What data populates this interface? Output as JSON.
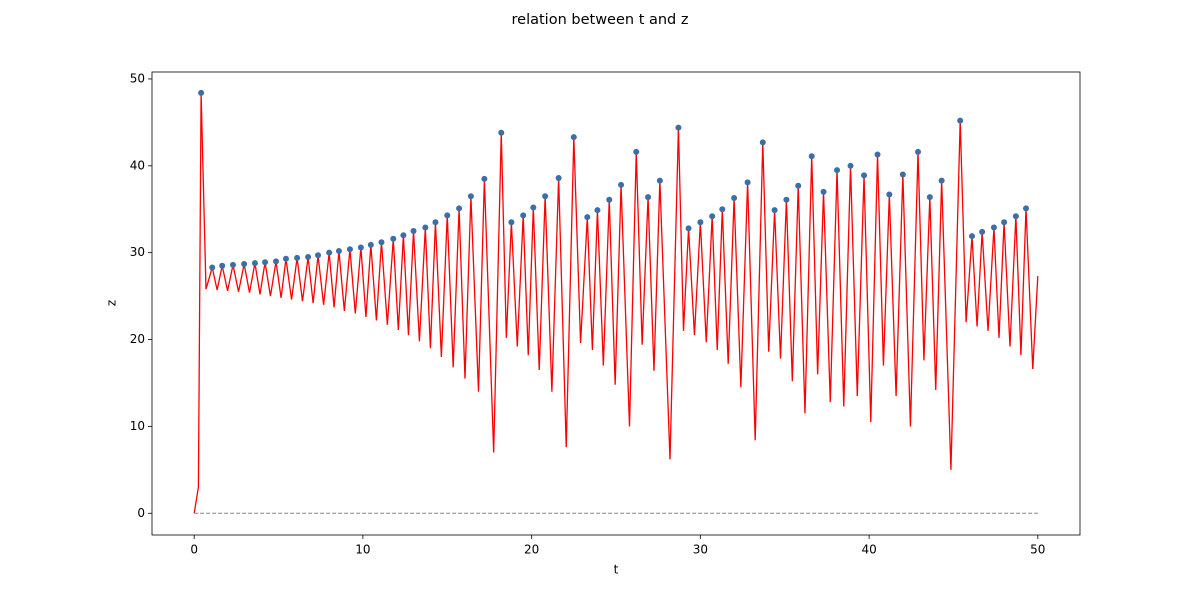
{
  "chart_data": {
    "type": "line",
    "title": "relation between t and z",
    "xlabel": "t",
    "ylabel": "z",
    "xlim": [
      -2.5,
      52.5
    ],
    "ylim": [
      -2.5,
      50.8
    ],
    "xticks": [
      0,
      10,
      20,
      30,
      40,
      50
    ],
    "yticks": [
      0,
      10,
      20,
      30,
      40,
      50
    ],
    "series": [
      {
        "type": "line",
        "color": "#ff0000",
        "style": "solid",
        "x": [
          0,
          0.25,
          0.41,
          0.7,
          1.07,
          1.36,
          1.66,
          1.98,
          2.3,
          2.63,
          2.96,
          3.28,
          3.6,
          3.9,
          4.2,
          4.52,
          4.85,
          5.15,
          5.44,
          5.77,
          6.1,
          6.42,
          6.75,
          7.05,
          7.34,
          7.67,
          8.0,
          8.29,
          8.58,
          8.9,
          9.23,
          9.55,
          9.88,
          10.18,
          10.47,
          10.8,
          11.1,
          11.45,
          11.8,
          12.1,
          12.4,
          12.7,
          13.0,
          13.35,
          13.7,
          14.0,
          14.3,
          14.65,
          15.0,
          15.35,
          15.7,
          16.05,
          16.4,
          16.85,
          17.2,
          17.75,
          18.2,
          18.5,
          18.8,
          19.15,
          19.5,
          19.8,
          20.1,
          20.45,
          20.8,
          21.2,
          21.6,
          22.05,
          22.5,
          22.9,
          23.3,
          23.6,
          23.9,
          24.25,
          24.6,
          24.95,
          25.3,
          25.8,
          26.2,
          26.55,
          26.9,
          27.25,
          27.6,
          28.2,
          28.7,
          29.0,
          29.3,
          29.65,
          30.0,
          30.35,
          30.7,
          31.0,
          31.3,
          31.65,
          32.0,
          32.4,
          32.8,
          33.25,
          33.7,
          34.05,
          34.4,
          34.75,
          35.1,
          35.45,
          35.8,
          36.2,
          36.6,
          36.95,
          37.3,
          37.7,
          38.1,
          38.5,
          38.9,
          39.3,
          39.7,
          40.1,
          40.5,
          40.85,
          41.2,
          41.6,
          42.0,
          42.45,
          42.9,
          43.25,
          43.6,
          43.95,
          44.3,
          44.85,
          45.4,
          45.75,
          46.1,
          46.4,
          46.7,
          47.05,
          47.4,
          47.7,
          48.0,
          48.35,
          48.7,
          49.0,
          49.3,
          49.7,
          50.0
        ],
        "values": [
          0,
          3,
          48.4,
          25.8,
          28.3,
          25.7,
          28.5,
          25.6,
          28.6,
          25.5,
          28.7,
          25.4,
          28.8,
          25.2,
          28.9,
          25.0,
          29.0,
          24.8,
          29.3,
          24.6,
          29.4,
          24.4,
          29.5,
          24.2,
          29.7,
          24.0,
          30.0,
          23.7,
          30.2,
          23.3,
          30.4,
          23.0,
          30.6,
          22.6,
          30.9,
          22.2,
          31.2,
          21.7,
          31.6,
          21.1,
          32.0,
          20.5,
          32.5,
          19.8,
          32.9,
          19.0,
          33.5,
          18.0,
          34.3,
          16.8,
          35.1,
          15.5,
          36.5,
          14.0,
          38.5,
          7.0,
          43.8,
          20.2,
          33.5,
          19.2,
          34.3,
          18.2,
          35.2,
          16.5,
          36.5,
          14.0,
          38.6,
          7.6,
          43.3,
          19.6,
          34.1,
          18.8,
          34.9,
          17.0,
          36.1,
          14.8,
          37.8,
          10.0,
          41.6,
          19.4,
          36.4,
          16.4,
          38.3,
          6.2,
          44.4,
          21.0,
          32.8,
          20.5,
          33.5,
          19.7,
          34.2,
          18.8,
          35.0,
          17.2,
          36.3,
          14.5,
          38.1,
          8.4,
          42.7,
          18.6,
          34.9,
          17.8,
          36.1,
          15.2,
          37.7,
          11.5,
          41.1,
          16.0,
          37.0,
          12.8,
          39.5,
          12.3,
          40.0,
          13.5,
          38.9,
          10.5,
          41.3,
          17.0,
          36.7,
          13.5,
          39.0,
          10.0,
          41.6,
          17.6,
          36.4,
          14.2,
          38.3,
          5.0,
          45.2,
          22.0,
          31.9,
          21.5,
          32.4,
          21.0,
          32.9,
          20.2,
          33.5,
          19.2,
          34.2,
          18.2,
          35.1,
          16.6,
          27.3
        ]
      },
      {
        "type": "scatter",
        "color": "#3a6fa8",
        "x": [
          0.41,
          1.07,
          1.66,
          2.3,
          2.96,
          3.6,
          4.2,
          4.85,
          5.44,
          6.1,
          6.75,
          7.34,
          8.0,
          8.58,
          9.23,
          9.88,
          10.47,
          11.1,
          11.8,
          12.4,
          13.0,
          13.7,
          14.3,
          15.0,
          15.7,
          16.4,
          17.2,
          18.2,
          18.8,
          19.5,
          20.1,
          20.8,
          21.6,
          22.5,
          23.3,
          23.9,
          24.6,
          25.3,
          26.2,
          26.9,
          27.6,
          28.7,
          29.3,
          30.0,
          30.7,
          31.3,
          32.0,
          32.8,
          33.7,
          34.4,
          35.1,
          35.8,
          36.6,
          37.3,
          38.1,
          38.9,
          39.7,
          40.5,
          41.2,
          42.0,
          42.9,
          43.6,
          44.3,
          45.4,
          46.1,
          46.7,
          47.4,
          48.0,
          48.7,
          49.3
        ],
        "values": [
          48.4,
          28.3,
          28.5,
          28.6,
          28.7,
          28.8,
          28.9,
          29.0,
          29.3,
          29.4,
          29.5,
          29.7,
          30.0,
          30.2,
          30.4,
          30.6,
          30.9,
          31.2,
          31.6,
          32.0,
          32.5,
          32.9,
          33.5,
          34.3,
          35.1,
          36.5,
          38.5,
          43.8,
          33.5,
          34.3,
          35.2,
          36.5,
          38.6,
          43.3,
          34.1,
          34.9,
          36.1,
          37.8,
          41.6,
          36.4,
          38.3,
          44.4,
          32.8,
          33.5,
          34.2,
          35.0,
          36.3,
          38.1,
          42.7,
          34.9,
          36.1,
          37.7,
          41.1,
          37.0,
          39.5,
          40.0,
          38.9,
          41.3,
          36.7,
          39.0,
          41.6,
          36.4,
          38.3,
          45.2,
          31.9,
          32.4,
          32.9,
          33.5,
          34.2,
          35.1
        ]
      },
      {
        "type": "line",
        "color": "#808080",
        "style": "dashed",
        "x": [
          0,
          50
        ],
        "values": [
          0,
          0
        ]
      }
    ]
  }
}
